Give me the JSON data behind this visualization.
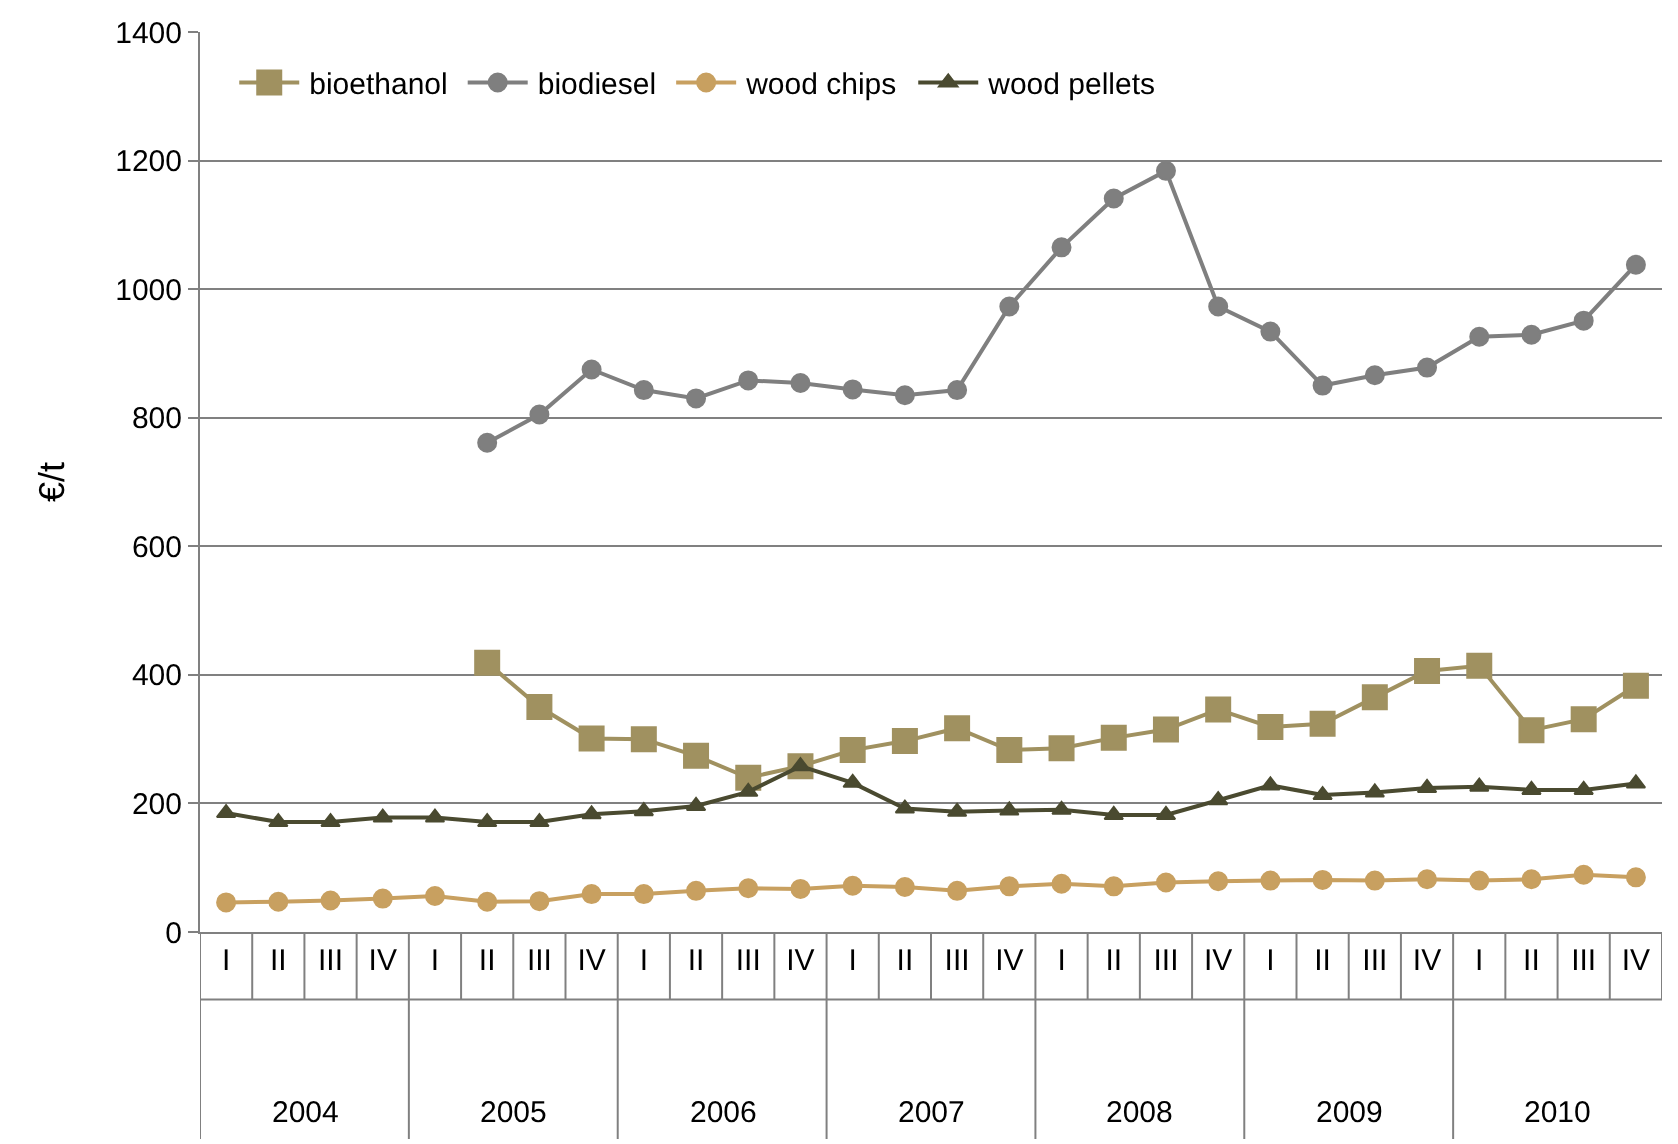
{
  "chart_data": {
    "type": "line",
    "ylabel": "€/t",
    "categories": [
      "I",
      "II",
      "III",
      "IV",
      "I",
      "II",
      "III",
      "IV",
      "I",
      "II",
      "III",
      "IV",
      "I",
      "II",
      "III",
      "IV",
      "I",
      "II",
      "III",
      "IV",
      "I",
      "II",
      "III",
      "IV",
      "I",
      "II",
      "III",
      "IV"
    ],
    "annotations": [
      "2004",
      "2005",
      "2006",
      "2007",
      "2008",
      "2009",
      "2010"
    ],
    "series": [
      {
        "name": "bioethanol",
        "color": "#a09160",
        "marker": "square",
        "values": [
          null,
          null,
          null,
          null,
          null,
          419,
          350,
          301,
          300,
          274,
          240,
          258,
          283,
          297,
          317,
          283,
          286,
          302,
          315,
          346,
          319,
          324,
          365,
          406,
          414,
          314,
          331,
          383
        ]
      },
      {
        "name": "biodiesel",
        "color": "#7f7f7f",
        "marker": "circle",
        "values": [
          null,
          null,
          null,
          null,
          null,
          761,
          805,
          875,
          843,
          830,
          858,
          854,
          844,
          835,
          843,
          973,
          1065,
          1141,
          1184,
          973,
          934,
          850,
          866,
          878,
          926,
          929,
          951,
          1038
        ]
      },
      {
        "name": "wood chips",
        "color": "#c8a060",
        "marker": "circle",
        "values": [
          46,
          47,
          49,
          52,
          56,
          47,
          48,
          59,
          59,
          64,
          68,
          67,
          72,
          70,
          64,
          71,
          75,
          71,
          77,
          79,
          80,
          81,
          80,
          82,
          80,
          82,
          89,
          85
        ]
      },
      {
        "name": "wood pellets",
        "color": "#4a4a30",
        "marker": "triangle",
        "values": [
          185,
          171,
          171,
          178,
          178,
          171,
          171,
          183,
          188,
          196,
          218,
          258,
          232,
          192,
          187,
          189,
          190,
          182,
          182,
          205,
          228,
          213,
          217,
          224,
          226,
          221,
          221,
          231
        ]
      }
    ],
    "ylim": [
      0,
      1400
    ],
    "yticks": [
      0,
      200,
      400,
      600,
      800,
      1000,
      1200,
      1400
    ],
    "grid": "y",
    "legend": "top left"
  }
}
